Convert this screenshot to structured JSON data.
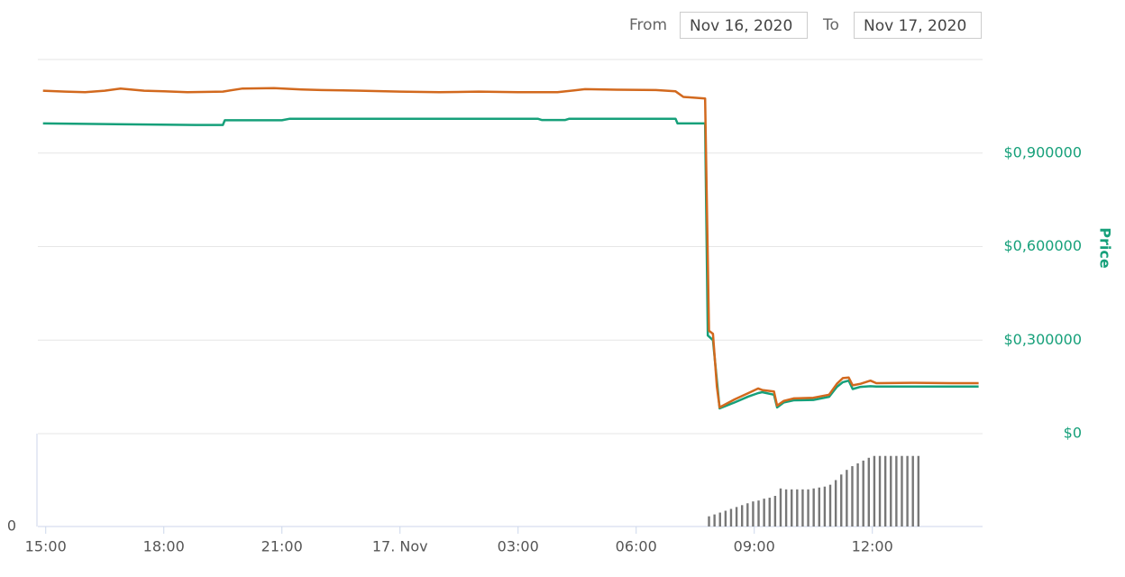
{
  "header": {
    "from_label": "From",
    "from": "Nov 16, 2020",
    "to_label": "To",
    "to": "Nov 17, 2020"
  },
  "chart_data": [
    {
      "type": "line",
      "y_label": "Price",
      "xlim": [
        14.8,
        38.8
      ],
      "ylim": [
        0,
        1.2
      ],
      "yticks": [
        {
          "value": 0,
          "label": "$0"
        },
        {
          "value": 0.3,
          "label": "$0,300000"
        },
        {
          "value": 0.6,
          "label": "$0,600000"
        },
        {
          "value": 0.9,
          "label": "$0,900000"
        }
      ],
      "grid": true,
      "series": [
        {
          "color": "#16a07a",
          "x": [
            14.93,
            18.8,
            19.5,
            19.55,
            21.0,
            21.2,
            27.5,
            27.6,
            28.2,
            28.3,
            31.0,
            31.05,
            31.75,
            31.82,
            31.95,
            32.12,
            32.5,
            32.85,
            33.1,
            33.2,
            33.5,
            33.58,
            33.75,
            34.0,
            34.5,
            34.9,
            35.1,
            35.25,
            35.4,
            35.5,
            35.7,
            35.95,
            36.1,
            37.0,
            38.0,
            38.7
          ],
          "values": [
            0.995,
            0.99,
            0.99,
            1.005,
            1.005,
            1.01,
            1.01,
            1.006,
            1.006,
            1.01,
            1.01,
            0.995,
            0.995,
            0.315,
            0.3,
            0.081,
            0.1,
            0.119,
            0.13,
            0.133,
            0.125,
            0.084,
            0.1,
            0.107,
            0.108,
            0.118,
            0.15,
            0.165,
            0.17,
            0.143,
            0.15,
            0.152,
            0.151,
            0.151,
            0.151,
            0.151
          ]
        },
        {
          "color": "#d2691e",
          "x": [
            14.93,
            15.5,
            16.0,
            16.5,
            16.9,
            17.5,
            18.0,
            18.6,
            19.5,
            20.0,
            20.8,
            21.5,
            22.0,
            23.0,
            24.0,
            25.0,
            26.0,
            27.0,
            28.0,
            28.7,
            29.5,
            30.5,
            31.0,
            31.2,
            31.75,
            31.85,
            31.95,
            32.05,
            32.12,
            32.5,
            32.85,
            33.1,
            33.2,
            33.5,
            33.58,
            33.75,
            34.0,
            34.5,
            34.9,
            35.1,
            35.25,
            35.4,
            35.5,
            35.7,
            35.95,
            36.1,
            37.0,
            38.0,
            38.7
          ],
          "values": [
            1.1,
            1.097,
            1.095,
            1.1,
            1.107,
            1.1,
            1.098,
            1.095,
            1.097,
            1.107,
            1.108,
            1.104,
            1.102,
            1.1,
            1.097,
            1.095,
            1.097,
            1.095,
            1.095,
            1.105,
            1.103,
            1.102,
            1.098,
            1.08,
            1.075,
            0.33,
            0.32,
            0.15,
            0.084,
            0.11,
            0.13,
            0.145,
            0.14,
            0.135,
            0.09,
            0.105,
            0.113,
            0.115,
            0.125,
            0.16,
            0.178,
            0.18,
            0.155,
            0.16,
            0.17,
            0.162,
            0.163,
            0.162,
            0.162
          ]
        }
      ]
    },
    {
      "type": "bar",
      "color": "#777777",
      "xlim": [
        14.8,
        38.8
      ],
      "ylim": [
        0,
        100
      ],
      "yticks": [
        0
      ],
      "xticks": [
        {
          "value": 15,
          "label": "15:00"
        },
        {
          "value": 18,
          "label": "18:00"
        },
        {
          "value": 21,
          "label": "21:00"
        },
        {
          "value": 24,
          "label": "17. Nov"
        },
        {
          "value": 27,
          "label": "03:00"
        },
        {
          "value": 30,
          "label": "06:00"
        },
        {
          "value": 33,
          "label": "09:00"
        },
        {
          "value": 36,
          "label": "12:00"
        }
      ],
      "x": [
        31.85,
        31.99,
        32.13,
        32.27,
        32.41,
        32.55,
        32.69,
        32.83,
        32.97,
        33.11,
        33.25,
        33.39,
        33.53,
        33.67,
        33.81,
        33.95,
        34.09,
        34.23,
        34.37,
        34.51,
        34.65,
        34.79,
        34.93,
        35.07,
        35.21,
        35.35,
        35.49,
        35.63,
        35.77,
        35.91,
        36.05,
        36.19,
        36.33,
        36.47,
        36.61,
        36.75,
        36.89,
        37.03,
        37.17
      ],
      "values": [
        11,
        13,
        15,
        17,
        19,
        21,
        23,
        25,
        27,
        28,
        30,
        31,
        33,
        41,
        40,
        40,
        40,
        40,
        40,
        41,
        42,
        43,
        45,
        50,
        56,
        61,
        65,
        68,
        71,
        74,
        76,
        76,
        76,
        76,
        76,
        76,
        76,
        76,
        76
      ]
    }
  ]
}
